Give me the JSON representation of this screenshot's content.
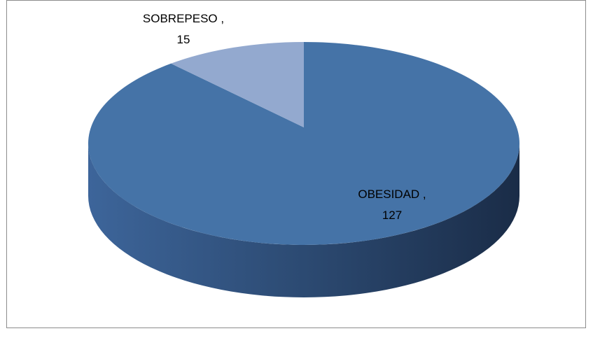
{
  "chart_data": {
    "type": "pie3d",
    "categories": [
      "OBESIDAD",
      "SOBREPESO"
    ],
    "values": [
      127,
      15
    ],
    "colors": [
      "#4573a7",
      "#93a9cf"
    ],
    "data_label_separator": " ,"
  }
}
